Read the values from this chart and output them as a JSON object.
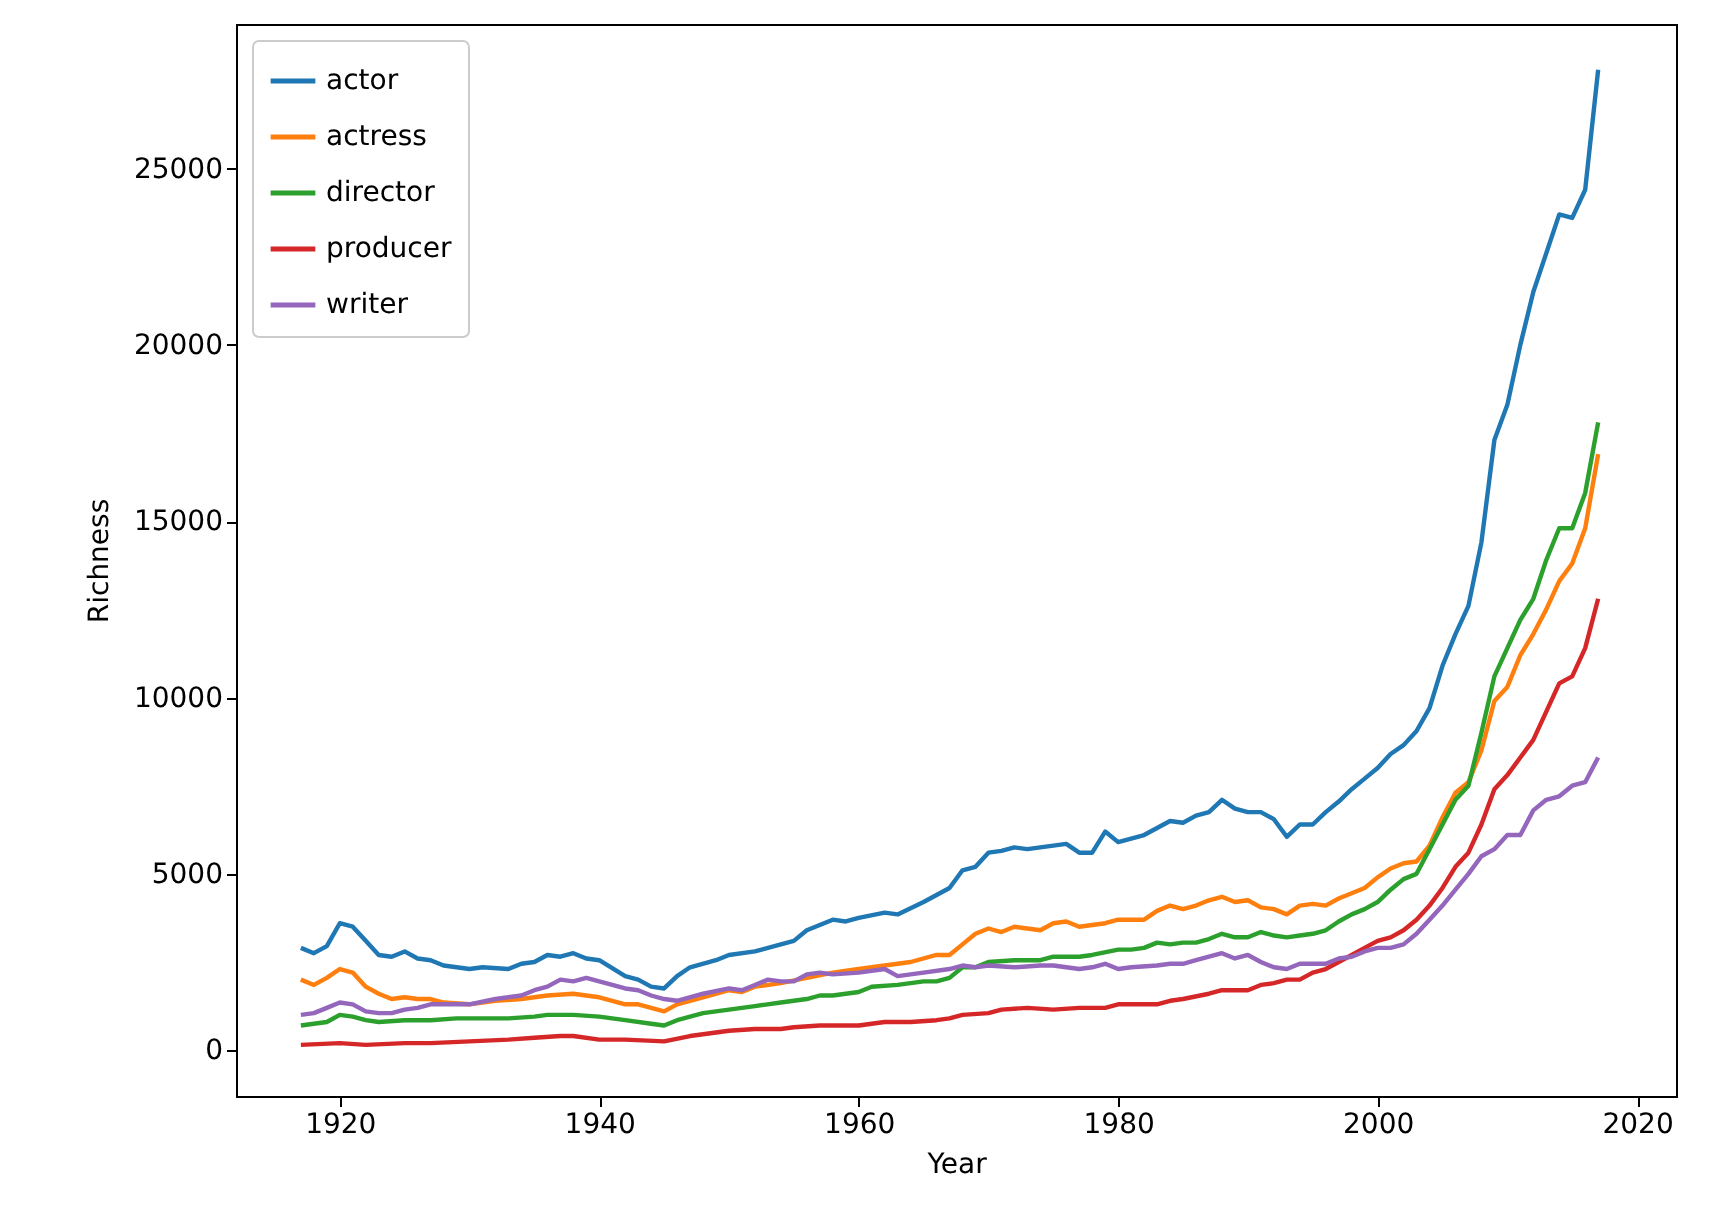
{
  "chart_data": {
    "type": "line",
    "xlabel": "Year",
    "ylabel": "Richness",
    "xlim": [
      1912,
      2023
    ],
    "ylim": [
      -1300,
      29100
    ],
    "xticks": [
      1920,
      1940,
      1960,
      1980,
      2000,
      2020
    ],
    "yticks": [
      0,
      5000,
      10000,
      15000,
      20000,
      25000
    ],
    "grid": false,
    "legend": "top left",
    "line_style": "solid",
    "marker": "none",
    "series": [
      {
        "name": "actor",
        "color": "#1f77b4",
        "x": [
          1917,
          1918,
          1919,
          1920,
          1921,
          1922,
          1923,
          1924,
          1925,
          1926,
          1927,
          1928,
          1930,
          1931,
          1933,
          1934,
          1935,
          1936,
          1937,
          1938,
          1939,
          1940,
          1942,
          1943,
          1944,
          1945,
          1946,
          1947,
          1949,
          1950,
          1952,
          1954,
          1955,
          1956,
          1958,
          1959,
          1960,
          1962,
          1963,
          1965,
          1967,
          1968,
          1969,
          1970,
          1971,
          1972,
          1973,
          1975,
          1976,
          1977,
          1978,
          1979,
          1980,
          1982,
          1983,
          1984,
          1985,
          1986,
          1987,
          1988,
          1989,
          1990,
          1991,
          1992,
          1993,
          1994,
          1995,
          1996,
          1997,
          1998,
          1999,
          2000,
          2001,
          2002,
          2003,
          2004,
          2005,
          2006,
          2007,
          2008,
          2009,
          2010,
          2011,
          2012,
          2013,
          2014,
          2015,
          2016,
          2017
        ],
        "values": [
          2900,
          2750,
          2950,
          3600,
          3500,
          3100,
          2700,
          2650,
          2800,
          2600,
          2550,
          2400,
          2300,
          2350,
          2300,
          2450,
          2500,
          2700,
          2650,
          2750,
          2600,
          2550,
          2100,
          2000,
          1800,
          1750,
          2100,
          2350,
          2550,
          2700,
          2800,
          3000,
          3100,
          3400,
          3700,
          3650,
          3750,
          3900,
          3850,
          4200,
          4600,
          5100,
          5200,
          5600,
          5650,
          5750,
          5700,
          5800,
          5850,
          5600,
          5600,
          6200,
          5900,
          6100,
          6300,
          6500,
          6450,
          6650,
          6750,
          7100,
          6850,
          6750,
          6750,
          6550,
          6050,
          6400,
          6400,
          6750,
          7050,
          7400,
          7700,
          8000,
          8400,
          8650,
          9050,
          9700,
          10900,
          11800,
          12600,
          14400,
          17300,
          18300,
          20000,
          21500,
          22600,
          23700,
          23600,
          24400,
          27800
        ]
      },
      {
        "name": "actress",
        "color": "#ff7f0e",
        "x": [
          1917,
          1918,
          1919,
          1920,
          1921,
          1922,
          1923,
          1924,
          1925,
          1926,
          1927,
          1928,
          1930,
          1932,
          1934,
          1936,
          1938,
          1939,
          1940,
          1942,
          1943,
          1944,
          1945,
          1946,
          1948,
          1950,
          1951,
          1952,
          1954,
          1956,
          1958,
          1960,
          1962,
          1964,
          1966,
          1967,
          1968,
          1969,
          1970,
          1971,
          1972,
          1974,
          1975,
          1976,
          1977,
          1979,
          1980,
          1982,
          1983,
          1984,
          1985,
          1986,
          1987,
          1988,
          1989,
          1990,
          1991,
          1992,
          1993,
          1994,
          1995,
          1996,
          1997,
          1998,
          1999,
          2000,
          2001,
          2002,
          2003,
          2004,
          2005,
          2006,
          2007,
          2008,
          2009,
          2010,
          2011,
          2012,
          2013,
          2014,
          2015,
          2016,
          2017
        ],
        "values": [
          2000,
          1850,
          2050,
          2300,
          2200,
          1800,
          1600,
          1450,
          1500,
          1450,
          1450,
          1350,
          1300,
          1400,
          1450,
          1550,
          1600,
          1550,
          1500,
          1300,
          1300,
          1200,
          1100,
          1300,
          1500,
          1700,
          1650,
          1800,
          1900,
          2050,
          2200,
          2300,
          2400,
          2500,
          2700,
          2700,
          3000,
          3300,
          3450,
          3350,
          3500,
          3400,
          3600,
          3650,
          3500,
          3600,
          3700,
          3700,
          3950,
          4100,
          4000,
          4100,
          4250,
          4350,
          4200,
          4250,
          4050,
          4000,
          3850,
          4100,
          4150,
          4100,
          4300,
          4450,
          4600,
          4900,
          5150,
          5300,
          5350,
          5800,
          6600,
          7300,
          7600,
          8500,
          9900,
          10300,
          11200,
          11800,
          12500,
          13300,
          13800,
          14800,
          16900
        ]
      },
      {
        "name": "director",
        "color": "#2ca02c",
        "x": [
          1917,
          1918,
          1919,
          1920,
          1921,
          1922,
          1923,
          1925,
          1927,
          1929,
          1931,
          1933,
          1935,
          1936,
          1938,
          1940,
          1942,
          1944,
          1945,
          1946,
          1948,
          1950,
          1952,
          1954,
          1956,
          1957,
          1958,
          1960,
          1961,
          1963,
          1965,
          1966,
          1967,
          1968,
          1969,
          1970,
          1972,
          1974,
          1975,
          1977,
          1978,
          1980,
          1981,
          1982,
          1983,
          1984,
          1985,
          1986,
          1987,
          1988,
          1989,
          1990,
          1991,
          1992,
          1993,
          1994,
          1995,
          1996,
          1997,
          1998,
          1999,
          2000,
          2001,
          2002,
          2003,
          2004,
          2005,
          2006,
          2007,
          2008,
          2009,
          2010,
          2011,
          2012,
          2013,
          2014,
          2015,
          2016,
          2017
        ],
        "values": [
          700,
          750,
          800,
          1000,
          950,
          850,
          800,
          850,
          850,
          900,
          900,
          900,
          950,
          1000,
          1000,
          950,
          850,
          750,
          700,
          850,
          1050,
          1150,
          1250,
          1350,
          1450,
          1550,
          1550,
          1650,
          1800,
          1850,
          1950,
          1950,
          2050,
          2350,
          2350,
          2500,
          2550,
          2550,
          2650,
          2650,
          2700,
          2850,
          2850,
          2900,
          3050,
          3000,
          3050,
          3050,
          3150,
          3300,
          3200,
          3200,
          3350,
          3250,
          3200,
          3250,
          3300,
          3400,
          3650,
          3850,
          4000,
          4200,
          4550,
          4850,
          5000,
          5700,
          6400,
          7100,
          7500,
          9000,
          10600,
          11400,
          12200,
          12800,
          13900,
          14800,
          14800,
          15800,
          17800
        ]
      },
      {
        "name": "producer",
        "color": "#d62728",
        "x": [
          1917,
          1920,
          1922,
          1925,
          1927,
          1930,
          1933,
          1935,
          1937,
          1938,
          1940,
          1942,
          1945,
          1947,
          1949,
          1950,
          1952,
          1954,
          1955,
          1957,
          1960,
          1962,
          1964,
          1966,
          1967,
          1968,
          1970,
          1971,
          1973,
          1975,
          1977,
          1979,
          1980,
          1982,
          1983,
          1984,
          1985,
          1987,
          1988,
          1990,
          1991,
          1992,
          1993,
          1994,
          1995,
          1996,
          1997,
          1998,
          1999,
          2000,
          2001,
          2002,
          2003,
          2004,
          2005,
          2006,
          2007,
          2008,
          2009,
          2010,
          2011,
          2012,
          2013,
          2014,
          2015,
          2016,
          2017
        ],
        "values": [
          150,
          200,
          150,
          200,
          200,
          250,
          300,
          350,
          400,
          400,
          300,
          300,
          250,
          400,
          500,
          550,
          600,
          600,
          650,
          700,
          700,
          800,
          800,
          850,
          900,
          1000,
          1050,
          1150,
          1200,
          1150,
          1200,
          1200,
          1300,
          1300,
          1300,
          1400,
          1450,
          1600,
          1700,
          1700,
          1850,
          1900,
          2000,
          2000,
          2200,
          2300,
          2500,
          2700,
          2900,
          3100,
          3200,
          3400,
          3700,
          4100,
          4600,
          5200,
          5600,
          6400,
          7400,
          7800,
          8300,
          8800,
          9600,
          10400,
          10600,
          11400,
          12800
        ]
      },
      {
        "name": "writer",
        "color": "#9467bd",
        "x": [
          1917,
          1918,
          1919,
          1920,
          1921,
          1922,
          1923,
          1924,
          1925,
          1926,
          1927,
          1929,
          1930,
          1932,
          1934,
          1935,
          1936,
          1937,
          1938,
          1939,
          1940,
          1941,
          1942,
          1943,
          1944,
          1945,
          1946,
          1948,
          1950,
          1951,
          1952,
          1953,
          1954,
          1955,
          1956,
          1957,
          1958,
          1960,
          1962,
          1963,
          1965,
          1967,
          1968,
          1969,
          1970,
          1972,
          1974,
          1975,
          1976,
          1977,
          1978,
          1979,
          1980,
          1981,
          1983,
          1984,
          1985,
          1986,
          1987,
          1988,
          1989,
          1990,
          1991,
          1992,
          1993,
          1994,
          1995,
          1996,
          1997,
          1998,
          1999,
          2000,
          2001,
          2002,
          2003,
          2004,
          2005,
          2006,
          2007,
          2008,
          2009,
          2010,
          2011,
          2012,
          2013,
          2014,
          2015,
          2016,
          2017
        ],
        "values": [
          1000,
          1050,
          1200,
          1350,
          1300,
          1100,
          1050,
          1050,
          1150,
          1200,
          1300,
          1300,
          1300,
          1450,
          1550,
          1700,
          1800,
          2000,
          1950,
          2050,
          1950,
          1850,
          1750,
          1700,
          1550,
          1450,
          1400,
          1600,
          1750,
          1700,
          1850,
          2000,
          1950,
          1950,
          2150,
          2200,
          2150,
          2200,
          2300,
          2100,
          2200,
          2300,
          2400,
          2350,
          2400,
          2350,
          2400,
          2400,
          2350,
          2300,
          2350,
          2450,
          2300,
          2350,
          2400,
          2450,
          2450,
          2550,
          2650,
          2750,
          2600,
          2700,
          2500,
          2350,
          2300,
          2450,
          2450,
          2450,
          2600,
          2650,
          2800,
          2900,
          2900,
          3000,
          3300,
          3700,
          4100,
          4550,
          5000,
          5500,
          5700,
          6100,
          6100,
          6800,
          7100,
          7200,
          7500,
          7600,
          8300
        ]
      }
    ]
  }
}
